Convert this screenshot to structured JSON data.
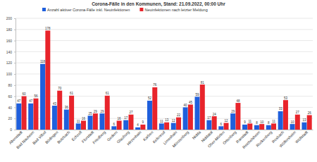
{
  "chart_data": {
    "type": "bar",
    "title": "Corona-Fälle in den Kommunen, Stand: 21.09.2022, 00:00 Uhr",
    "categories": [
      "Altenstadt",
      "Bad Nauheim",
      "Bad Vilbel",
      "Büdingen",
      "Butzbach",
      "Echzell",
      "Florstadt",
      "Friedberg",
      "Gedern",
      "Glauburg",
      "Hirzenhain",
      "Karben",
      "Kefenrod",
      "Limeshain",
      "Münzenberg",
      "Nidda",
      "Niddatal",
      "Ober-Mörlen",
      "Ortenberg",
      "Ranstadt",
      "Reichelsheim",
      "Rockenberg",
      "Rosbach",
      "Wölfersheim",
      "Wöllstadt"
    ],
    "series": [
      {
        "name": "Anzahl aktiver Corona-Fälle inkl. Neuinfektionen",
        "color": "#1f5fdc",
        "values": [
          47,
          47,
          118,
          43,
          36,
          11,
          25,
          29,
          6,
          17,
          4,
          52,
          11,
          12,
          40,
          59,
          17,
          6,
          29,
          9,
          8,
          8,
          33,
          10,
          13
        ]
      },
      {
        "name": "Neuinfektionen nach letzter Meldung",
        "color": "#e8242b",
        "values": [
          60,
          56,
          178,
          70,
          61,
          16,
          29,
          61,
          16,
          27,
          9,
          76,
          13,
          22,
          45,
          81,
          24,
          12,
          48,
          11,
          10,
          11,
          53,
          27,
          26
        ]
      }
    ],
    "ylim": [
      0,
      200
    ],
    "yticks": [
      0,
      20,
      40,
      60,
      80,
      100,
      120,
      140,
      160,
      180,
      200
    ],
    "grid": true,
    "legend": "top",
    "data_labels": true
  }
}
